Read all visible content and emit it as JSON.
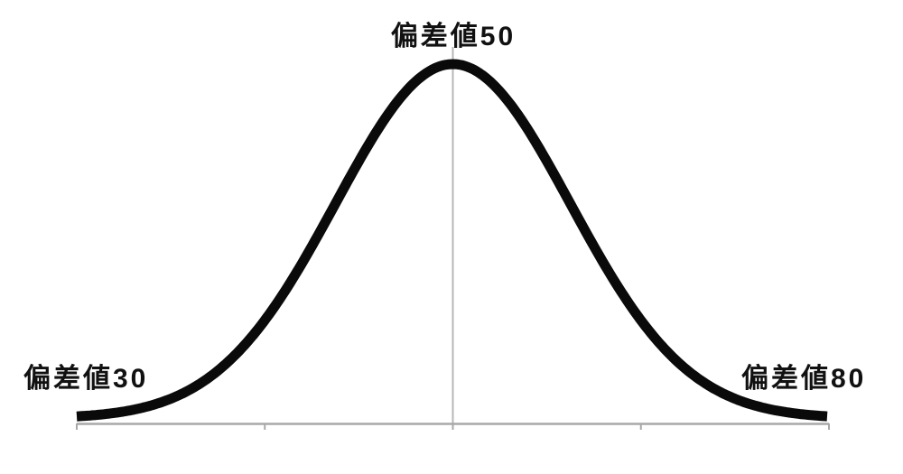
{
  "page": {
    "background_color": "#ffffff"
  },
  "labels": {
    "peak": "偏差値50",
    "left_tail": "偏差値30",
    "right_tail": "偏差値80"
  },
  "chart_data": {
    "type": "line",
    "title": "偏差値50",
    "curve": "normal-distribution",
    "xlabel": "",
    "ylabel": "",
    "x_axis": {
      "tick_count": 5,
      "tick_labels": [
        "",
        "",
        "",
        "",
        ""
      ],
      "gridlines": false
    },
    "distribution": {
      "mean_score": 50,
      "annotated_scores": [
        30,
        50,
        80
      ]
    },
    "annotations": [
      {
        "text": "偏差値50",
        "value": 50,
        "position": "top-center-at-peak"
      },
      {
        "text": "偏差値30",
        "value": 30,
        "position": "bottom-left-tail"
      },
      {
        "text": "偏差値80",
        "value": 80,
        "position": "bottom-right-tail"
      }
    ],
    "legend": {
      "visible": false
    },
    "colors": {
      "curve": "#0a0a0a",
      "axis": "#a8a8a8",
      "mean_line": "#b7b7b7",
      "text": "#111111"
    }
  }
}
